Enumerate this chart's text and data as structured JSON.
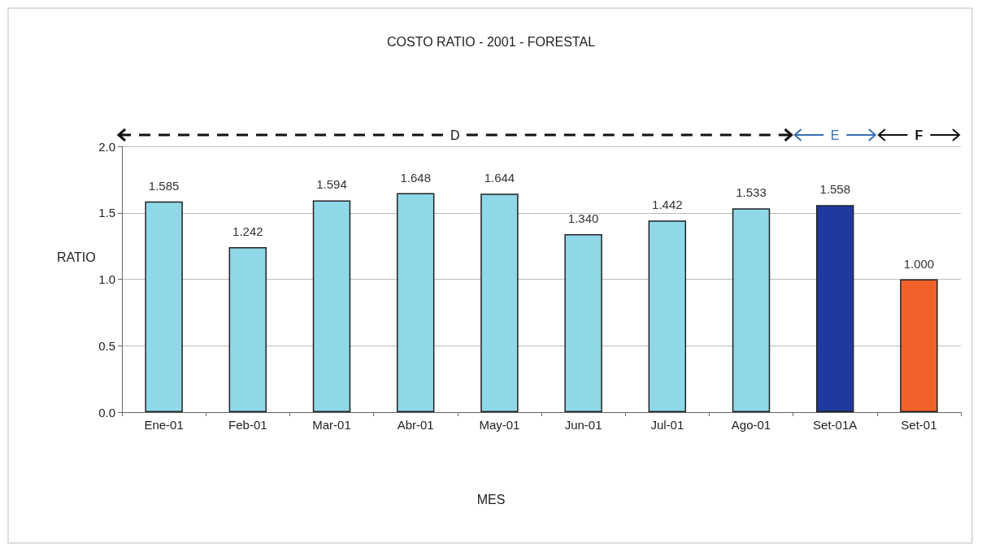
{
  "chart_data": {
    "type": "bar",
    "title": "COSTO RATIO - 2001 - FORESTAL",
    "xlabel": "MES",
    "ylabel": "RATIO",
    "categories": [
      "Ene-01",
      "Feb-01",
      "Mar-01",
      "Abr-01",
      "May-01",
      "Jun-01",
      "Jul-01",
      "Ago-01",
      "Set-01A",
      "Set-01"
    ],
    "values": [
      1.585,
      1.242,
      1.594,
      1.648,
      1.644,
      1.34,
      1.442,
      1.533,
      1.558,
      1.0
    ],
    "value_labels": [
      "1.585",
      "1.242",
      "1.594",
      "1.648",
      "1.644",
      "1.340",
      "1.442",
      "1.533",
      "1.558",
      "1.000"
    ],
    "colors": [
      "#8fd8e8",
      "#8fd8e8",
      "#8fd8e8",
      "#8fd8e8",
      "#8fd8e8",
      "#8fd8e8",
      "#8fd8e8",
      "#8fd8e8",
      "#1f3a9e",
      "#f0622a"
    ],
    "ylim": [
      0,
      2
    ],
    "yticks": [
      {
        "value": 0,
        "label": "0.0"
      },
      {
        "value": 0.5,
        "label": "0.5"
      },
      {
        "value": 1,
        "label": "1.0"
      },
      {
        "value": 1.5,
        "label": "1.5"
      },
      {
        "value": 2,
        "label": "2.0"
      }
    ],
    "grid": "y",
    "annotations": [
      "D",
      "E",
      "F"
    ]
  }
}
